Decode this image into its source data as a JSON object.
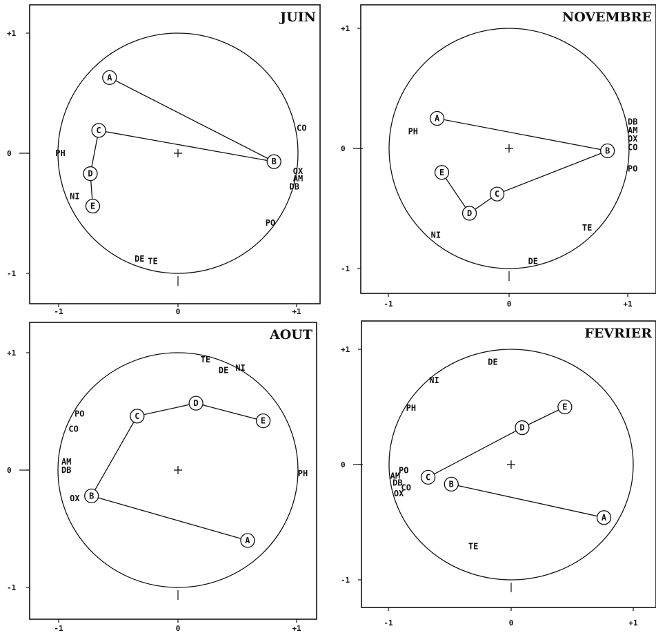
{
  "chart_data": [
    {
      "type": "scatter",
      "title": "JUIN",
      "xlim": [
        -1,
        1
      ],
      "ylim": [
        -1,
        1
      ],
      "x_ticks": [
        "-1",
        "0",
        "+1"
      ],
      "y_ticks": [
        "+1",
        "0",
        "-1"
      ],
      "points": [
        {
          "label": "A",
          "x": -0.57,
          "y": 0.63
        },
        {
          "label": "B",
          "x": 0.8,
          "y": -0.07
        },
        {
          "label": "C",
          "x": -0.66,
          "y": 0.19
        },
        {
          "label": "D",
          "x": -0.73,
          "y": -0.17
        },
        {
          "label": "E",
          "x": -0.71,
          "y": -0.44
        }
      ],
      "segments": [
        [
          "A",
          "B"
        ],
        [
          "C",
          "B"
        ],
        [
          "C",
          "D"
        ],
        [
          "D",
          "E"
        ]
      ],
      "variables": [
        {
          "label": "CO",
          "x": 1.03,
          "y": 0.21
        },
        {
          "label": "PH",
          "x": -0.98,
          "y": 0.0
        },
        {
          "label": "OX",
          "x": 1.0,
          "y": -0.15
        },
        {
          "label": "AM",
          "x": 1.0,
          "y": -0.21
        },
        {
          "label": "DB",
          "x": 0.97,
          "y": -0.28
        },
        {
          "label": "NI",
          "x": -0.86,
          "y": -0.36
        },
        {
          "label": "PO",
          "x": 0.77,
          "y": -0.58
        },
        {
          "label": "DE",
          "x": -0.32,
          "y": -0.88
        },
        {
          "label": "TE",
          "x": -0.21,
          "y": -0.9
        }
      ]
    },
    {
      "type": "scatter",
      "title": "NOVEMBRE",
      "xlim": [
        -1,
        1
      ],
      "ylim": [
        -1,
        1
      ],
      "x_ticks": [
        "-1",
        "0",
        "+1"
      ],
      "y_ticks": [
        "+1",
        "0",
        "-1"
      ],
      "points": [
        {
          "label": "A",
          "x": -0.6,
          "y": 0.25
        },
        {
          "label": "B",
          "x": 0.82,
          "y": -0.02
        },
        {
          "label": "C",
          "x": -0.1,
          "y": -0.38
        },
        {
          "label": "D",
          "x": -0.33,
          "y": -0.54
        },
        {
          "label": "E",
          "x": -0.56,
          "y": -0.2
        }
      ],
      "segments": [
        [
          "A",
          "B"
        ],
        [
          "B",
          "C"
        ],
        [
          "C",
          "D"
        ],
        [
          "D",
          "E"
        ]
      ],
      "variables": [
        {
          "label": "PH",
          "x": -0.8,
          "y": 0.14
        },
        {
          "label": "DB",
          "x": 1.03,
          "y": 0.22
        },
        {
          "label": "AM",
          "x": 1.03,
          "y": 0.15
        },
        {
          "label": "OX",
          "x": 1.03,
          "y": 0.08
        },
        {
          "label": "CO",
          "x": 1.03,
          "y": 0.01
        },
        {
          "label": "PO",
          "x": 1.03,
          "y": -0.17
        },
        {
          "label": "TE",
          "x": 0.65,
          "y": -0.66
        },
        {
          "label": "NI",
          "x": -0.61,
          "y": -0.72
        },
        {
          "label": "DE",
          "x": 0.2,
          "y": -0.94
        }
      ]
    },
    {
      "type": "scatter",
      "title": "AOUT",
      "xlim": [
        -1,
        1
      ],
      "ylim": [
        -1,
        1
      ],
      "x_ticks": [
        "-1",
        "0",
        "+1"
      ],
      "y_ticks": [
        "+1",
        "0",
        "-1"
      ],
      "points": [
        {
          "label": "A",
          "x": 0.58,
          "y": -0.6
        },
        {
          "label": "B",
          "x": -0.72,
          "y": -0.22
        },
        {
          "label": "C",
          "x": -0.34,
          "y": 0.46
        },
        {
          "label": "D",
          "x": 0.15,
          "y": 0.57
        },
        {
          "label": "E",
          "x": 0.71,
          "y": 0.42
        }
      ],
      "segments": [
        [
          "A",
          "B"
        ],
        [
          "B",
          "C"
        ],
        [
          "C",
          "D"
        ],
        [
          "D",
          "E"
        ]
      ],
      "variables": [
        {
          "label": "TE",
          "x": 0.23,
          "y": 0.94
        },
        {
          "label": "DE",
          "x": 0.38,
          "y": 0.85
        },
        {
          "label": "NI",
          "x": 0.52,
          "y": 0.87
        },
        {
          "label": "PO",
          "x": -0.82,
          "y": 0.48
        },
        {
          "label": "CO",
          "x": -0.87,
          "y": 0.35
        },
        {
          "label": "AM",
          "x": -0.93,
          "y": 0.07
        },
        {
          "label": "DB",
          "x": -0.93,
          "y": 0.0
        },
        {
          "label": "PH",
          "x": 1.04,
          "y": -0.03
        },
        {
          "label": "OX",
          "x": -0.86,
          "y": -0.24
        }
      ]
    },
    {
      "type": "scatter",
      "title": "FEVRIER",
      "xlim": [
        -1,
        1
      ],
      "ylim": [
        -1,
        1
      ],
      "x_ticks": [
        "-1",
        "0",
        "+1"
      ],
      "y_ticks": [
        "+1",
        "0",
        "-1"
      ],
      "points": [
        {
          "label": "A",
          "x": 0.76,
          "y": -0.46
        },
        {
          "label": "B",
          "x": -0.49,
          "y": -0.17
        },
        {
          "label": "C",
          "x": -0.68,
          "y": -0.11
        },
        {
          "label": "D",
          "x": 0.09,
          "y": 0.32
        },
        {
          "label": "E",
          "x": 0.44,
          "y": 0.5
        }
      ],
      "segments": [
        [
          "A",
          "B"
        ],
        [
          "C",
          "D"
        ],
        [
          "D",
          "E"
        ]
      ],
      "variables": [
        {
          "label": "DE",
          "x": -0.15,
          "y": 0.89
        },
        {
          "label": "NI",
          "x": -0.63,
          "y": 0.73
        },
        {
          "label": "PH",
          "x": -0.82,
          "y": 0.49
        },
        {
          "label": "PO",
          "x": -0.88,
          "y": -0.05
        },
        {
          "label": "AM",
          "x": -0.95,
          "y": -0.1
        },
        {
          "label": "DB",
          "x": -0.93,
          "y": -0.16
        },
        {
          "label": "CO",
          "x": -0.86,
          "y": -0.2
        },
        {
          "label": "OX",
          "x": -0.92,
          "y": -0.25
        },
        {
          "label": "TE",
          "x": -0.31,
          "y": -0.71
        }
      ]
    }
  ]
}
